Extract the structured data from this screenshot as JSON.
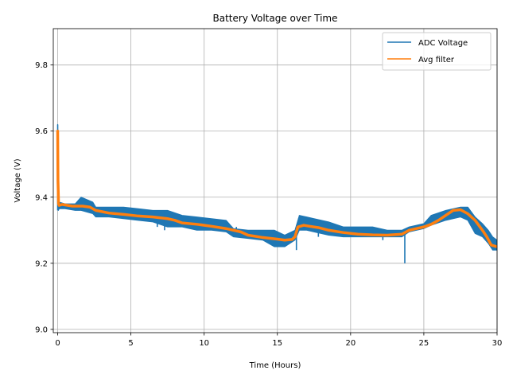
{
  "chart_data": {
    "type": "line",
    "title": "Battery Voltage over Time",
    "xlabel": "Time (Hours)",
    "ylabel": "Voltage (V)",
    "xlim": [
      -0.3,
      30
    ],
    "ylim": [
      8.99,
      9.91
    ],
    "xticks": [
      0,
      5,
      10,
      15,
      20,
      25,
      30
    ],
    "yticks": [
      9.0,
      9.2,
      9.4,
      9.6,
      9.8
    ],
    "xtick_labels": [
      "0",
      "5",
      "10",
      "15",
      "20",
      "25",
      "30"
    ],
    "ytick_labels": [
      "9.0",
      "9.2",
      "9.4",
      "9.6",
      "9.8"
    ],
    "grid": true,
    "legend_position": "top-right",
    "series": [
      {
        "name": "ADC Voltage",
        "color": "#1f77b4",
        "style": "noisy-band",
        "x": [
          0,
          0.05,
          0.1,
          0.5,
          1.2,
          1.6,
          2.4,
          2.6,
          3.5,
          4.5,
          5.5,
          6.5,
          7.5,
          8.5,
          9.5,
          10.5,
          11.5,
          12.0,
          13.0,
          14.0,
          14.8,
          15.5,
          16.2,
          16.5,
          17.0,
          17.5,
          18.5,
          19.5,
          20.5,
          21.5,
          22.5,
          23.5,
          24.0,
          25.0,
          25.5,
          26.5,
          27.5,
          28.0,
          28.5,
          29.0,
          29.4,
          29.7,
          30.0
        ],
        "low": [
          9.62,
          9.36,
          9.365,
          9.365,
          9.36,
          9.36,
          9.35,
          9.34,
          9.34,
          9.335,
          9.33,
          9.325,
          9.31,
          9.31,
          9.3,
          9.3,
          9.295,
          9.28,
          9.275,
          9.27,
          9.25,
          9.25,
          9.27,
          9.3,
          9.3,
          9.295,
          9.285,
          9.28,
          9.28,
          9.28,
          9.28,
          9.28,
          9.295,
          9.305,
          9.315,
          9.33,
          9.34,
          9.33,
          9.29,
          9.28,
          9.26,
          9.24,
          9.24
        ],
        "high": [
          9.62,
          9.4,
          9.385,
          9.38,
          9.38,
          9.4,
          9.385,
          9.37,
          9.37,
          9.37,
          9.365,
          9.36,
          9.36,
          9.345,
          9.34,
          9.335,
          9.33,
          9.305,
          9.3,
          9.3,
          9.3,
          9.285,
          9.3,
          9.345,
          9.34,
          9.335,
          9.325,
          9.31,
          9.31,
          9.31,
          9.3,
          9.3,
          9.31,
          9.32,
          9.345,
          9.36,
          9.37,
          9.37,
          9.34,
          9.32,
          9.3,
          9.28,
          9.27
        ],
        "spikes": [
          {
            "x": 0.0,
            "from": 9.36,
            "to": 9.62
          },
          {
            "x": 6.8,
            "from": 9.31,
            "to": 9.34
          },
          {
            "x": 7.3,
            "from": 9.3,
            "to": 9.36
          },
          {
            "x": 12.2,
            "from": 9.28,
            "to": 9.31
          },
          {
            "x": 16.3,
            "from": 9.24,
            "to": 9.29
          },
          {
            "x": 17.8,
            "from": 9.28,
            "to": 9.31
          },
          {
            "x": 22.2,
            "from": 9.27,
            "to": 9.29
          },
          {
            "x": 23.7,
            "from": 9.2,
            "to": 9.3
          }
        ]
      },
      {
        "name": "Avg filter",
        "color": "#ff7f0e",
        "x": [
          0,
          0.02,
          0.06,
          0.1,
          0.3,
          1.0,
          1.7,
          2.2,
          2.6,
          3.5,
          4.5,
          5.5,
          6.5,
          7.5,
          8.0,
          8.5,
          9.5,
          10.5,
          11.5,
          12.5,
          13.0,
          14.0,
          15.0,
          15.5,
          16.0,
          16.2,
          16.4,
          16.8,
          17.2,
          17.8,
          18.5,
          19.5,
          20.5,
          21.5,
          22.5,
          23.5,
          24.0,
          24.5,
          25.0,
          25.5,
          26.0,
          26.5,
          27.0,
          27.5,
          28.0,
          28.5,
          29.0,
          29.3,
          29.6,
          30.0
        ],
        "y": [
          9.6,
          9.45,
          9.38,
          9.375,
          9.378,
          9.373,
          9.373,
          9.37,
          9.36,
          9.352,
          9.348,
          9.343,
          9.34,
          9.335,
          9.33,
          9.322,
          9.318,
          9.312,
          9.305,
          9.295,
          9.285,
          9.278,
          9.273,
          9.27,
          9.272,
          9.28,
          9.31,
          9.315,
          9.312,
          9.308,
          9.3,
          9.293,
          9.288,
          9.286,
          9.285,
          9.288,
          9.3,
          9.305,
          9.31,
          9.318,
          9.33,
          9.345,
          9.36,
          9.362,
          9.35,
          9.33,
          9.3,
          9.28,
          9.255,
          9.25
        ]
      }
    ]
  }
}
